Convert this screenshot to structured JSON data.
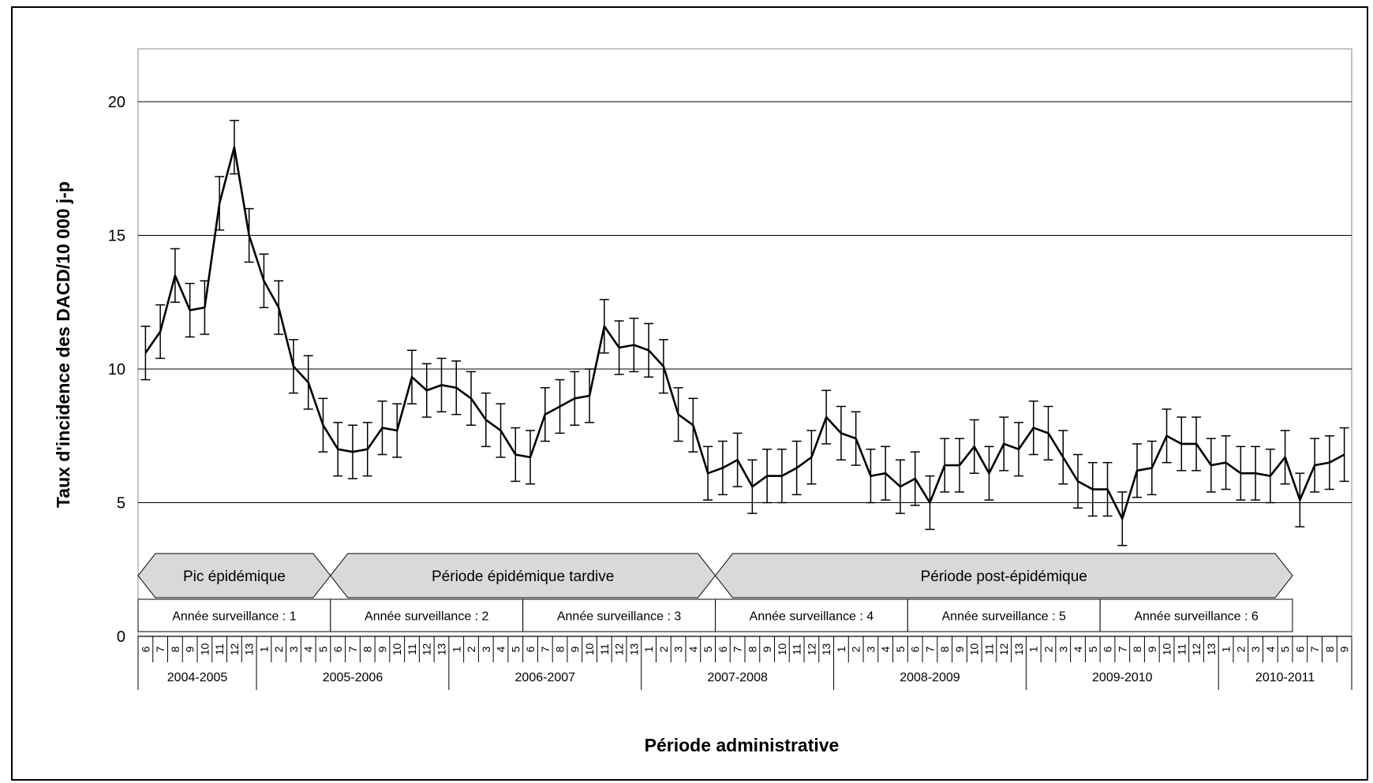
{
  "chart_data": {
    "type": "line",
    "title": "",
    "xlabel": "Période administrative",
    "ylabel": "Taux d'incidence des  DACD/10 000 j-p",
    "ylim": [
      0,
      22
    ],
    "yticks": [
      "0",
      "5",
      "10",
      "15",
      "20"
    ],
    "grid": "horizontal",
    "error_bars": true,
    "error_bar_halfwidth": 1.0,
    "periods": [
      "6",
      "7",
      "8",
      "9",
      "10",
      "11",
      "12",
      "13",
      "1",
      "2",
      "3",
      "4",
      "5",
      "6",
      "7",
      "8",
      "9",
      "10",
      "11",
      "12",
      "13",
      "1",
      "2",
      "3",
      "4",
      "5",
      "6",
      "7",
      "8",
      "9",
      "10",
      "11",
      "12",
      "13",
      "1",
      "2",
      "3",
      "4",
      "5",
      "6",
      "7",
      "8",
      "9",
      "10",
      "11",
      "12",
      "13",
      "1",
      "2",
      "3",
      "4",
      "5",
      "6",
      "7",
      "8",
      "9",
      "10",
      "11",
      "12",
      "13",
      "1",
      "2",
      "3",
      "4",
      "5",
      "6",
      "7",
      "8",
      "9",
      "10",
      "11",
      "12",
      "13",
      "1",
      "2",
      "3",
      "4",
      "5",
      "6",
      "7",
      "8",
      "9"
    ],
    "values": [
      10.6,
      11.4,
      13.5,
      12.2,
      12.3,
      16.2,
      18.3,
      15.0,
      13.3,
      12.3,
      10.1,
      9.5,
      7.9,
      7.0,
      6.9,
      7.0,
      7.8,
      7.7,
      9.7,
      9.2,
      9.4,
      9.3,
      8.9,
      8.1,
      7.7,
      6.8,
      6.7,
      8.3,
      8.6,
      8.9,
      9.0,
      11.6,
      10.8,
      10.9,
      10.7,
      10.1,
      8.3,
      7.9,
      6.1,
      6.3,
      6.6,
      5.6,
      6.0,
      6.0,
      6.3,
      6.7,
      8.2,
      7.6,
      7.4,
      6.0,
      6.1,
      5.6,
      5.9,
      5.0,
      6.4,
      6.4,
      7.1,
      6.1,
      7.2,
      7.0,
      7.8,
      7.6,
      6.7,
      5.8,
      5.5,
      5.5,
      4.4,
      6.2,
      6.3,
      7.5,
      7.2,
      7.2,
      6.4,
      6.5,
      6.1,
      6.1,
      6.0,
      6.7,
      5.1,
      6.4,
      6.5,
      6.8
    ],
    "years": [
      {
        "label": "2004-2005",
        "start": 0,
        "end": 8
      },
      {
        "label": "2005-2006",
        "start": 8,
        "end": 21
      },
      {
        "label": "2006-2007",
        "start": 21,
        "end": 34
      },
      {
        "label": "2007-2008",
        "start": 34,
        "end": 47
      },
      {
        "label": "2008-2009",
        "start": 47,
        "end": 60
      },
      {
        "label": "2009-2010",
        "start": 60,
        "end": 73
      },
      {
        "label": "2010-2011",
        "start": 73,
        "end": 82
      }
    ],
    "surveillance_years": [
      {
        "label": "Année surveillance : 1",
        "start": 0,
        "end": 13
      },
      {
        "label": "Année surveillance : 2",
        "start": 13,
        "end": 26
      },
      {
        "label": "Année surveillance : 3",
        "start": 26,
        "end": 39
      },
      {
        "label": "Année surveillance : 4",
        "start": 39,
        "end": 52
      },
      {
        "label": "Année surveillance : 5",
        "start": 52,
        "end": 65
      },
      {
        "label": "Année surveillance : 6",
        "start": 65,
        "end": 78
      }
    ],
    "phases": [
      {
        "label": "Pic épidémique",
        "start": 0,
        "end": 13
      },
      {
        "label": "Période épidémique tardive",
        "start": 13,
        "end": 39
      },
      {
        "label": "Période post-épidémique",
        "start": 39,
        "end": 78
      }
    ],
    "colors": {
      "line": "#000000",
      "grid": "#000000",
      "phase_fill": "#d9d9d9",
      "frame": "#000000"
    }
  }
}
